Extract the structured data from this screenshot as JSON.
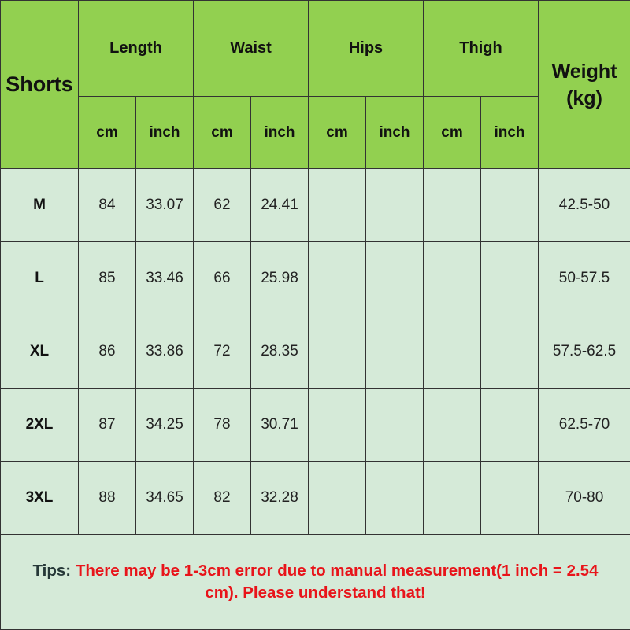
{
  "header": {
    "category": "Shorts",
    "groups": [
      "Length",
      "Waist",
      "Hips",
      "Thigh"
    ],
    "units": [
      "cm",
      "inch",
      "cm",
      "inch",
      "cm",
      "inch",
      "cm",
      "inch"
    ],
    "weight_line1": "Weight",
    "weight_line2": "(kg)"
  },
  "rows": [
    {
      "size": "M",
      "cells": [
        "84",
        "33.07",
        "62",
        "24.41",
        "",
        "",
        "",
        ""
      ],
      "weight": "42.5-50"
    },
    {
      "size": "L",
      "cells": [
        "85",
        "33.46",
        "66",
        "25.98",
        "",
        "",
        "",
        ""
      ],
      "weight": "50-57.5"
    },
    {
      "size": "XL",
      "cells": [
        "86",
        "33.86",
        "72",
        "28.35",
        "",
        "",
        "",
        ""
      ],
      "weight": "57.5-62.5"
    },
    {
      "size": "2XL",
      "cells": [
        "87",
        "34.25",
        "78",
        "30.71",
        "",
        "",
        "",
        ""
      ],
      "weight": "62.5-70"
    },
    {
      "size": "3XL",
      "cells": [
        "88",
        "34.65",
        "82",
        "32.28",
        "",
        "",
        "",
        ""
      ],
      "weight": "70-80"
    }
  ],
  "tips": {
    "label": "Tips:",
    "text": "There may be 1-3cm error due to manual measurement(1 inch = 2.54 cm). Please understand that!"
  },
  "colors": {
    "header": "#92d050",
    "body": "#d5ead8",
    "tips_text": "#e8141a"
  }
}
